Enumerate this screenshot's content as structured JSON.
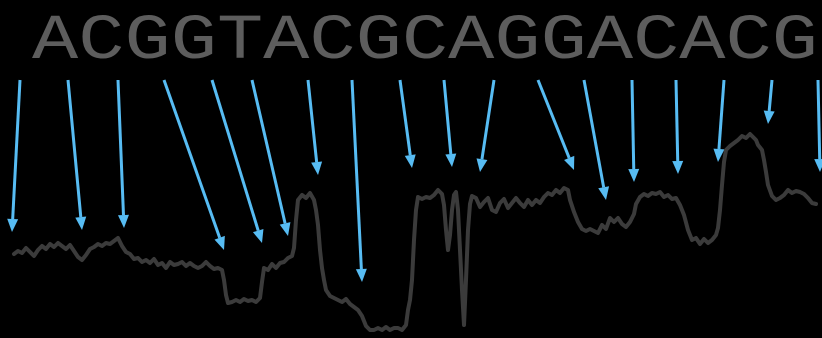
{
  "sequence": {
    "text": "ACGGTACGCAGGACACG",
    "text_color": "#5d5d5d"
  },
  "arrows": {
    "color": "#57bcf3",
    "count": 17
  },
  "signal_trace": {
    "color": "#3b3b3b",
    "background": "#000000"
  }
}
